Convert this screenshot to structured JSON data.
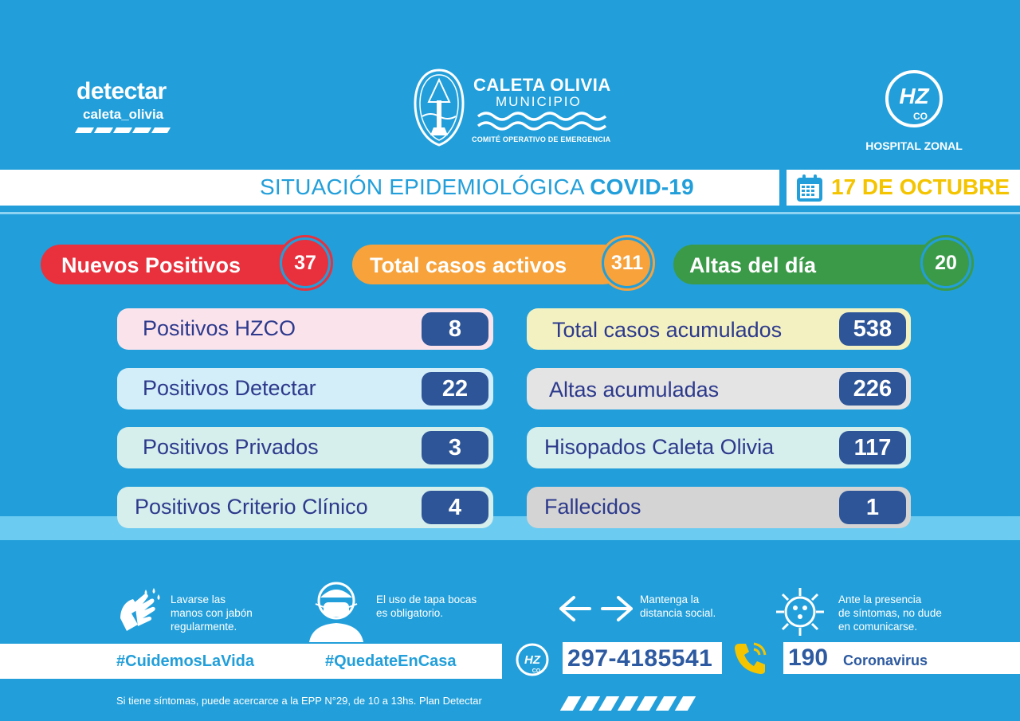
{
  "header": {
    "detectar_title": "detectar",
    "detectar_sub": "caleta_olivia",
    "muni_title": "CALETA OLIVIA",
    "muni_sub": "MUNICIPIO",
    "muni_committee": "COMITÉ OPERATIVO DE EMERGENCIA",
    "hospital_label": "HOSPITAL ZONAL",
    "hospital_logo_text": "HZ",
    "hospital_logo_sub": "CO"
  },
  "title": {
    "prefix": "SITUACIÓN EPIDEMIOLÓGICA ",
    "highlight": "COVID-19",
    "date": "17 DE OCTUBRE"
  },
  "summary": [
    {
      "label": "Nuevos Positivos",
      "value": "37",
      "color": "#e8313d"
    },
    {
      "label": "Total casos activos",
      "value": "311",
      "color": "#f7a23b"
    },
    {
      "label": "Altas del día",
      "value": "20",
      "color": "#3a9a48"
    }
  ],
  "left_cards": [
    {
      "label": "Positivos HZCO",
      "value": "8",
      "bg": "#fbe3ec"
    },
    {
      "label": "Positivos Detectar",
      "value": "22",
      "bg": "#d3edf9"
    },
    {
      "label": "Positivos Privados",
      "value": "3",
      "bg": "#d6eeec"
    },
    {
      "label": "Positivos Criterio Clínico",
      "value": "4",
      "bg": "#d6eeec"
    }
  ],
  "right_cards": [
    {
      "label": "Total casos acumulados",
      "value": "538",
      "bg": "#f3f1c2"
    },
    {
      "label": "Altas acumuladas",
      "value": "226",
      "bg": "#e4e4e4"
    },
    {
      "label": "Hisopados Caleta Olivia",
      "value": "117",
      "bg": "#d6eeec"
    },
    {
      "label": "Fallecidos",
      "value": "1",
      "bg": "#d4d4d4"
    }
  ],
  "tips": {
    "wash": [
      "Lavarse las",
      "manos con jabón",
      "regularmente."
    ],
    "mask": [
      "El uso de tapa bocas",
      "es obligatorio."
    ],
    "distance": [
      "Mantenga la",
      "distancia social."
    ],
    "symptoms": [
      "Ante la presencia",
      "de síntomas, no dude",
      "en comunicarse."
    ]
  },
  "bottom": {
    "hashtag1": "#CuidemosLaVida",
    "hashtag2": "#QuedateEnCasa",
    "phone": "297-4185541",
    "hotline_number": "190",
    "hotline_label": "Coronavirus",
    "footer": "Si tiene síntomas, puede acercarce a la EPP  N°29, de 10 a 13hs. Plan Detectar"
  },
  "colors": {
    "background": "#229fda",
    "title_blue": "#229fda",
    "date_yellow": "#f4c400",
    "value_box": "#2e5597",
    "card_text": "#2d3a8c"
  }
}
